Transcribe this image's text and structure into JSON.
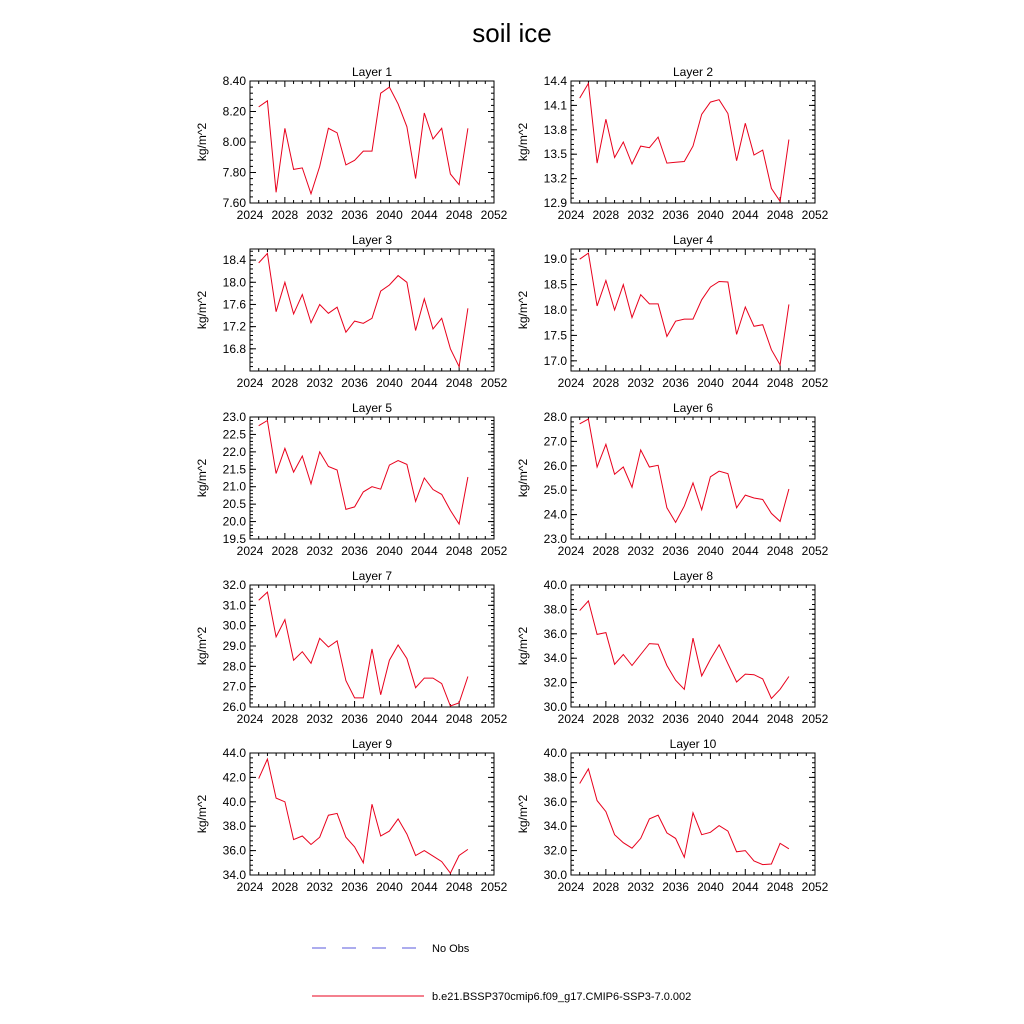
{
  "figure_title": "soil ice",
  "line_color": "#e8001c",
  "obs_color": "#5a5adc",
  "legend": [
    {
      "label": "No Obs",
      "style": "dashed",
      "color": "#5a5adc"
    },
    {
      "label": "b.e21.BSSP370cmip6.f09_g17.CMIP6-SSP3-7.0.002",
      "style": "solid",
      "color": "#e8001c"
    }
  ],
  "chart_data": [
    {
      "type": "line",
      "title": "Layer 1",
      "ylabel": "kg/m^2",
      "xlim": [
        2024,
        2052
      ],
      "xticks": [
        2024,
        2028,
        2032,
        2036,
        2040,
        2044,
        2048,
        2052
      ],
      "ylim": [
        7.6,
        8.4
      ],
      "yticks": [
        7.6,
        7.8,
        8.0,
        8.2,
        8.4
      ],
      "ytick_labels": [
        "7.60",
        "7.80",
        "8.00",
        "8.20",
        "8.40"
      ],
      "x": [
        2025,
        2026,
        2027,
        2028,
        2029,
        2030,
        2031,
        2032,
        2033,
        2034,
        2035,
        2036,
        2037,
        2038,
        2039,
        2040,
        2041,
        2042,
        2043,
        2044,
        2045,
        2046,
        2047,
        2048,
        2049
      ],
      "values": [
        8.23,
        8.27,
        7.67,
        8.09,
        7.82,
        7.83,
        7.66,
        7.84,
        8.09,
        8.06,
        7.85,
        7.88,
        7.94,
        7.94,
        8.32,
        8.36,
        8.25,
        8.1,
        7.76,
        8.19,
        8.02,
        8.09,
        7.79,
        7.72,
        8.09
      ]
    },
    {
      "type": "line",
      "title": "Layer 2",
      "ylabel": "kg/m^2",
      "xlim": [
        2024,
        2052
      ],
      "xticks": [
        2024,
        2028,
        2032,
        2036,
        2040,
        2044,
        2048,
        2052
      ],
      "ylim": [
        12.9,
        14.4
      ],
      "yticks": [
        12.9,
        13.2,
        13.5,
        13.8,
        14.1,
        14.4
      ],
      "ytick_labels": [
        "12.9",
        "13.2",
        "13.5",
        "13.8",
        "14.1",
        "14.4"
      ],
      "x": [
        2025,
        2026,
        2027,
        2028,
        2029,
        2030,
        2031,
        2032,
        2033,
        2034,
        2035,
        2036,
        2037,
        2038,
        2039,
        2040,
        2041,
        2042,
        2043,
        2044,
        2045,
        2046,
        2047,
        2048,
        2049
      ],
      "values": [
        14.19,
        14.37,
        13.39,
        13.93,
        13.46,
        13.65,
        13.38,
        13.6,
        13.58,
        13.71,
        13.39,
        13.4,
        13.41,
        13.6,
        13.99,
        14.14,
        14.17,
        14.0,
        13.42,
        13.88,
        13.49,
        13.55,
        13.08,
        12.92,
        13.68
      ]
    },
    {
      "type": "line",
      "title": "Layer 3",
      "ylabel": "kg/m^2",
      "xlim": [
        2024,
        2052
      ],
      "xticks": [
        2024,
        2028,
        2032,
        2036,
        2040,
        2044,
        2048,
        2052
      ],
      "ylim": [
        16.4,
        18.6
      ],
      "yticks": [
        16.8,
        17.2,
        17.6,
        18.0,
        18.4
      ],
      "ytick_labels": [
        "16.8",
        "17.2",
        "17.6",
        "18.0",
        "18.4"
      ],
      "x": [
        2025,
        2026,
        2027,
        2028,
        2029,
        2030,
        2031,
        2032,
        2033,
        2034,
        2035,
        2036,
        2037,
        2038,
        2039,
        2040,
        2041,
        2042,
        2043,
        2044,
        2045,
        2046,
        2047,
        2048,
        2049
      ],
      "values": [
        18.35,
        18.52,
        17.47,
        18.0,
        17.43,
        17.78,
        17.27,
        17.6,
        17.44,
        17.55,
        17.1,
        17.3,
        17.26,
        17.35,
        17.84,
        17.95,
        18.12,
        18.0,
        17.13,
        17.7,
        17.16,
        17.35,
        16.8,
        16.48,
        17.53
      ]
    },
    {
      "type": "line",
      "title": "Layer 4",
      "ylabel": "kg/m^2",
      "xlim": [
        2024,
        2052
      ],
      "xticks": [
        2024,
        2028,
        2032,
        2036,
        2040,
        2044,
        2048,
        2052
      ],
      "ylim": [
        16.8,
        19.2
      ],
      "yticks": [
        17.0,
        17.5,
        18.0,
        18.5,
        19.0
      ],
      "ytick_labels": [
        "17.0",
        "17.5",
        "18.0",
        "18.5",
        "19.0"
      ],
      "x": [
        2025,
        2026,
        2027,
        2028,
        2029,
        2030,
        2031,
        2032,
        2033,
        2034,
        2035,
        2036,
        2037,
        2038,
        2039,
        2040,
        2041,
        2042,
        2043,
        2044,
        2045,
        2046,
        2047,
        2048,
        2049
      ],
      "values": [
        19.0,
        19.12,
        18.08,
        18.58,
        18.0,
        18.5,
        17.85,
        18.3,
        18.12,
        18.12,
        17.48,
        17.78,
        17.82,
        17.82,
        18.2,
        18.45,
        18.56,
        18.55,
        17.52,
        18.06,
        17.68,
        17.71,
        17.22,
        16.92,
        18.11
      ]
    },
    {
      "type": "line",
      "title": "Layer 5",
      "ylabel": "kg/m^2",
      "xlim": [
        2024,
        2052
      ],
      "xticks": [
        2024,
        2028,
        2032,
        2036,
        2040,
        2044,
        2048,
        2052
      ],
      "ylim": [
        19.5,
        23.0
      ],
      "yticks": [
        19.5,
        20.0,
        20.5,
        21.0,
        21.5,
        22.0,
        22.5,
        23.0
      ],
      "ytick_labels": [
        "19.5",
        "20.0",
        "20.5",
        "21.0",
        "21.5",
        "22.0",
        "22.5",
        "23.0"
      ],
      "x": [
        2025,
        2026,
        2027,
        2028,
        2029,
        2030,
        2031,
        2032,
        2033,
        2034,
        2035,
        2036,
        2037,
        2038,
        2039,
        2040,
        2041,
        2042,
        2043,
        2044,
        2045,
        2046,
        2047,
        2048,
        2049
      ],
      "values": [
        22.75,
        22.9,
        21.38,
        22.1,
        21.42,
        21.88,
        21.08,
        22.0,
        21.58,
        21.48,
        20.35,
        20.42,
        20.85,
        21.0,
        20.93,
        21.62,
        21.75,
        21.64,
        20.58,
        21.25,
        20.92,
        20.78,
        20.32,
        19.93,
        21.28
      ]
    },
    {
      "type": "line",
      "title": "Layer 6",
      "ylabel": "kg/m^2",
      "xlim": [
        2024,
        2052
      ],
      "xticks": [
        2024,
        2028,
        2032,
        2036,
        2040,
        2044,
        2048,
        2052
      ],
      "ylim": [
        23.0,
        28.0
      ],
      "yticks": [
        23.0,
        24.0,
        25.0,
        26.0,
        27.0,
        28.0
      ],
      "ytick_labels": [
        "23.0",
        "24.0",
        "25.0",
        "26.0",
        "27.0",
        "28.0"
      ],
      "x": [
        2025,
        2026,
        2027,
        2028,
        2029,
        2030,
        2031,
        2032,
        2033,
        2034,
        2035,
        2036,
        2037,
        2038,
        2039,
        2040,
        2041,
        2042,
        2043,
        2044,
        2045,
        2046,
        2047,
        2048,
        2049
      ],
      "values": [
        27.72,
        27.92,
        25.95,
        26.88,
        25.65,
        25.95,
        25.12,
        26.65,
        25.95,
        26.02,
        24.28,
        23.68,
        24.35,
        25.3,
        24.2,
        25.55,
        25.78,
        25.68,
        24.28,
        24.8,
        24.68,
        24.62,
        24.05,
        23.72,
        25.05
      ]
    },
    {
      "type": "line",
      "title": "Layer 7",
      "ylabel": "kg/m^2",
      "xlim": [
        2024,
        2052
      ],
      "xticks": [
        2024,
        2028,
        2032,
        2036,
        2040,
        2044,
        2048,
        2052
      ],
      "ylim": [
        26.0,
        32.0
      ],
      "yticks": [
        26.0,
        27.0,
        28.0,
        29.0,
        30.0,
        31.0,
        32.0
      ],
      "ytick_labels": [
        "26.0",
        "27.0",
        "28.0",
        "29.0",
        "30.0",
        "31.0",
        "32.0"
      ],
      "x": [
        2025,
        2026,
        2027,
        2028,
        2029,
        2030,
        2031,
        2032,
        2033,
        2034,
        2035,
        2036,
        2037,
        2038,
        2039,
        2040,
        2041,
        2042,
        2043,
        2044,
        2045,
        2046,
        2047,
        2048,
        2049
      ],
      "values": [
        31.25,
        31.65,
        29.45,
        30.3,
        28.3,
        28.72,
        28.15,
        29.38,
        28.95,
        29.25,
        27.3,
        26.45,
        26.45,
        28.85,
        26.6,
        28.3,
        29.05,
        28.38,
        26.95,
        27.42,
        27.42,
        27.15,
        26.05,
        26.2,
        27.5
      ]
    },
    {
      "type": "line",
      "title": "Layer 8",
      "ylabel": "kg/m^2",
      "xlim": [
        2024,
        2052
      ],
      "xticks": [
        2024,
        2028,
        2032,
        2036,
        2040,
        2044,
        2048,
        2052
      ],
      "ylim": [
        30.0,
        40.0
      ],
      "yticks": [
        30.0,
        32.0,
        34.0,
        36.0,
        38.0,
        40.0
      ],
      "ytick_labels": [
        "30.0",
        "32.0",
        "34.0",
        "36.0",
        "38.0",
        "40.0"
      ],
      "x": [
        2025,
        2026,
        2027,
        2028,
        2029,
        2030,
        2031,
        2032,
        2033,
        2034,
        2035,
        2036,
        2037,
        2038,
        2039,
        2040,
        2041,
        2042,
        2043,
        2044,
        2045,
        2046,
        2047,
        2048,
        2049
      ],
      "values": [
        37.9,
        38.7,
        35.95,
        36.1,
        33.5,
        34.3,
        33.4,
        34.3,
        35.2,
        35.15,
        33.4,
        32.2,
        31.45,
        35.65,
        32.55,
        33.9,
        35.1,
        33.55,
        32.05,
        32.7,
        32.65,
        32.3,
        30.7,
        31.45,
        32.5
      ]
    },
    {
      "type": "line",
      "title": "Layer 9",
      "ylabel": "kg/m^2",
      "xlim": [
        2024,
        2052
      ],
      "xticks": [
        2024,
        2028,
        2032,
        2036,
        2040,
        2044,
        2048,
        2052
      ],
      "ylim": [
        34.0,
        44.0
      ],
      "yticks": [
        34.0,
        36.0,
        38.0,
        40.0,
        42.0,
        44.0
      ],
      "ytick_labels": [
        "34.0",
        "36.0",
        "38.0",
        "40.0",
        "42.0",
        "44.0"
      ],
      "x": [
        2025,
        2026,
        2027,
        2028,
        2029,
        2030,
        2031,
        2032,
        2033,
        2034,
        2035,
        2036,
        2037,
        2038,
        2039,
        2040,
        2041,
        2042,
        2043,
        2044,
        2045,
        2046,
        2047,
        2048,
        2049
      ],
      "values": [
        41.9,
        43.5,
        40.3,
        40.0,
        36.9,
        37.2,
        36.5,
        37.1,
        38.9,
        39.05,
        37.1,
        36.3,
        35.0,
        39.8,
        37.2,
        37.6,
        38.6,
        37.35,
        35.6,
        36.0,
        35.55,
        35.1,
        34.15,
        35.6,
        36.1
      ]
    },
    {
      "type": "line",
      "title": "Layer 10",
      "ylabel": "kg/m^2",
      "xlim": [
        2024,
        2052
      ],
      "xticks": [
        2024,
        2028,
        2032,
        2036,
        2040,
        2044,
        2048,
        2052
      ],
      "ylim": [
        30.0,
        40.0
      ],
      "yticks": [
        30.0,
        32.0,
        34.0,
        36.0,
        38.0,
        40.0
      ],
      "ytick_labels": [
        "30.0",
        "32.0",
        "34.0",
        "36.0",
        "38.0",
        "40.0"
      ],
      "x": [
        2025,
        2026,
        2027,
        2028,
        2029,
        2030,
        2031,
        2032,
        2033,
        2034,
        2035,
        2036,
        2037,
        2038,
        2039,
        2040,
        2041,
        2042,
        2043,
        2044,
        2045,
        2046,
        2047,
        2048,
        2049
      ],
      "values": [
        37.5,
        38.7,
        36.1,
        35.2,
        33.3,
        32.65,
        32.2,
        33.0,
        34.6,
        34.9,
        33.45,
        33.0,
        31.45,
        35.1,
        33.3,
        33.5,
        34.05,
        33.6,
        31.9,
        32.0,
        31.15,
        30.85,
        30.9,
        32.6,
        32.15
      ]
    }
  ]
}
